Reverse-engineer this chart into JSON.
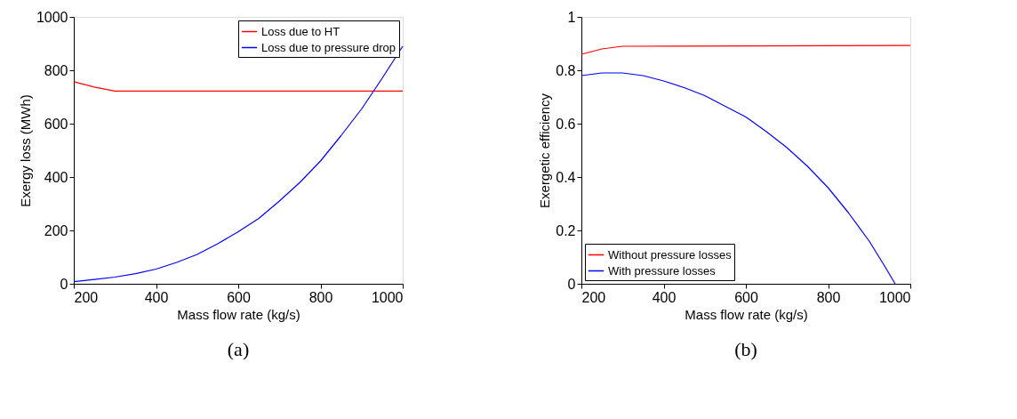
{
  "chart_data": [
    {
      "type": "line",
      "xlabel": "Mass flow rate (kg/s)",
      "ylabel": "Exergy loss (MWh)",
      "xlim": [
        200,
        1000
      ],
      "ylim": [
        0,
        1000
      ],
      "xticks": [
        200,
        400,
        600,
        800,
        1000
      ],
      "yticks": [
        0,
        200,
        400,
        600,
        800,
        1000
      ],
      "grid": false,
      "legend": "top right",
      "annotations": [
        "(a)"
      ],
      "series": [
        {
          "name": "Loss due to HT",
          "color": "#ff0000",
          "x": [
            200,
            250,
            300,
            1000
          ],
          "values": [
            757,
            737,
            722,
            722
          ]
        },
        {
          "name": "Loss due to pressure drop",
          "color": "#0000ff",
          "x": [
            200,
            250,
            300,
            350,
            400,
            450,
            500,
            550,
            600,
            650,
            700,
            750,
            800,
            850,
            900,
            950,
            1000
          ],
          "values": [
            8,
            16,
            25,
            38,
            55,
            80,
            110,
            150,
            195,
            245,
            310,
            380,
            460,
            555,
            655,
            770,
            890
          ]
        }
      ]
    },
    {
      "type": "line",
      "xlabel": "Mass flow rate (kg/s)",
      "ylabel": "Exergetic efficiency",
      "xlim": [
        200,
        1000
      ],
      "ylim": [
        0,
        1
      ],
      "xticks": [
        200,
        400,
        600,
        800,
        1000
      ],
      "yticks": [
        0,
        0.2,
        0.4,
        0.6,
        0.8,
        1
      ],
      "grid": false,
      "legend": "bottom left",
      "annotations": [
        "(b)"
      ],
      "series": [
        {
          "name": "Without pressure losses",
          "color": "#ff0000",
          "x": [
            200,
            250,
            300,
            1000
          ],
          "values": [
            0.86,
            0.88,
            0.89,
            0.893
          ]
        },
        {
          "name": "With pressure losses",
          "color": "#0000ff",
          "x": [
            200,
            250,
            300,
            350,
            400,
            450,
            500,
            550,
            600,
            650,
            700,
            750,
            800,
            850,
            900,
            940,
            963
          ],
          "values": [
            0.78,
            0.79,
            0.79,
            0.78,
            0.76,
            0.735,
            0.705,
            0.665,
            0.625,
            0.57,
            0.51,
            0.44,
            0.36,
            0.265,
            0.16,
            0.06,
            0
          ]
        }
      ]
    }
  ]
}
